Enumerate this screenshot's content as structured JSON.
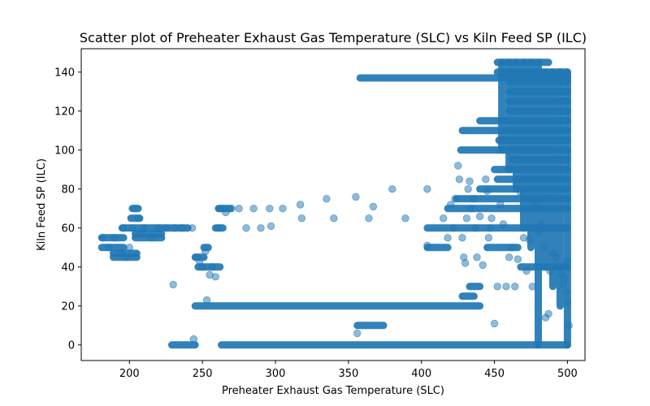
{
  "chart_data": {
    "type": "scatter",
    "title": "Scatter plot of Preheater Exhaust Gas Temperature (SLC) vs Kiln Feed  SP  (ILC)",
    "xlabel": "Preheater Exhaust Gas Temperature (SLC)",
    "ylabel": "Kiln Feed  SP  (ILC)",
    "xlim": [
      167,
      512
    ],
    "ylim": [
      -8,
      152
    ],
    "xticks": [
      200,
      250,
      300,
      350,
      400,
      450,
      500
    ],
    "yticks": [
      0,
      20,
      40,
      60,
      80,
      100,
      120,
      140
    ],
    "grid": false,
    "marker_color": "#1f77b4",
    "marker_alpha": 0.5,
    "series": [
      {
        "points": [
          [
            182,
            55
          ],
          [
            186,
            50
          ],
          [
            190,
            55
          ],
          [
            194,
            47
          ],
          [
            196,
            60
          ],
          [
            198,
            45
          ],
          [
            200,
            50
          ],
          [
            202,
            60
          ],
          [
            204,
            70
          ],
          [
            206,
            65
          ],
          [
            208,
            57
          ],
          [
            210,
            60
          ],
          [
            215,
            55
          ],
          [
            220,
            60
          ],
          [
            225,
            60
          ],
          [
            230,
            31
          ],
          [
            231,
            60
          ],
          [
            236,
            60
          ],
          [
            243,
            60
          ],
          [
            244,
            3
          ],
          [
            246,
            45
          ],
          [
            248,
            43
          ],
          [
            250,
            40
          ],
          [
            252,
            48
          ],
          [
            253,
            23
          ],
          [
            255,
            36
          ],
          [
            257,
            40
          ],
          [
            259,
            35
          ],
          [
            261,
            60
          ],
          [
            262,
            70
          ],
          [
            264,
            70
          ],
          [
            266,
            68
          ],
          [
            270,
            70
          ],
          [
            275,
            70
          ],
          [
            280,
            60
          ],
          [
            285,
            70
          ],
          [
            290,
            60
          ],
          [
            296,
            70
          ],
          [
            297,
            61
          ],
          [
            305,
            70
          ],
          [
            317,
            72
          ],
          [
            318,
            65
          ],
          [
            335,
            75
          ],
          [
            340,
            65
          ],
          [
            355,
            76
          ],
          [
            356,
            6
          ],
          [
            364,
            65
          ],
          [
            367,
            71
          ],
          [
            380,
            80
          ],
          [
            389,
            65
          ],
          [
            404,
            80
          ],
          [
            404,
            51
          ],
          [
            415,
            65
          ],
          [
            418,
            55
          ],
          [
            420,
            72
          ],
          [
            422,
            60
          ],
          [
            423,
            75
          ],
          [
            425,
            92
          ],
          [
            426,
            85
          ],
          [
            428,
            55
          ],
          [
            429,
            45
          ],
          [
            430,
            42
          ],
          [
            431,
            65
          ],
          [
            432,
            80
          ],
          [
            433,
            84
          ],
          [
            434,
            70
          ],
          [
            436,
            75
          ],
          [
            437,
            60
          ],
          [
            438,
            45
          ],
          [
            440,
            66
          ],
          [
            442,
            41
          ],
          [
            444,
            85
          ],
          [
            445,
            79
          ],
          [
            446,
            55
          ],
          [
            447,
            60
          ],
          [
            448,
            65
          ],
          [
            450,
            11
          ],
          [
            452,
            30
          ],
          [
            454,
            72
          ],
          [
            456,
            62
          ],
          [
            458,
            30
          ],
          [
            460,
            45
          ],
          [
            462,
            50
          ],
          [
            464,
            30
          ],
          [
            466,
            44
          ],
          [
            468,
            78
          ],
          [
            470,
            55
          ],
          [
            472,
            38
          ],
          [
            474,
            54
          ],
          [
            476,
            30
          ],
          [
            478,
            73
          ],
          [
            480,
            58
          ],
          [
            482,
            62
          ],
          [
            484,
            50
          ],
          [
            485,
            14
          ],
          [
            487,
            16
          ],
          [
            488,
            38
          ],
          [
            490,
            47
          ],
          [
            492,
            45
          ],
          [
            494,
            40
          ],
          [
            496,
            36
          ],
          [
            497,
            31
          ],
          [
            498,
            34
          ],
          [
            499,
            27
          ],
          [
            500,
            22
          ],
          [
            501,
            10
          ],
          [
            500,
            43
          ]
        ],
        "segments": [
          {
            "y": 55,
            "x": [
              181,
              196
            ]
          },
          {
            "y": 50,
            "x": [
              181,
              196
            ]
          },
          {
            "y": 45,
            "x": [
              189,
              205
            ]
          },
          {
            "y": 47,
            "x": [
              189,
              205
            ]
          },
          {
            "y": 60,
            "x": [
              195,
              240
            ]
          },
          {
            "y": 55,
            "x": [
              204,
              222
            ]
          },
          {
            "y": 57,
            "x": [
              204,
              222
            ]
          },
          {
            "y": 65,
            "x": [
              201,
              207
            ]
          },
          {
            "y": 70,
            "x": [
              202,
              206
            ]
          },
          {
            "y": 0,
            "x": [
              229,
              245
            ]
          },
          {
            "y": 45,
            "x": [
              245,
              251
            ]
          },
          {
            "y": 40,
            "x": [
              247,
              262
            ]
          },
          {
            "y": 50,
            "x": [
              251,
              254
            ]
          },
          {
            "y": 60,
            "x": [
              259,
              264
            ]
          },
          {
            "y": 70,
            "x": [
              261,
              269
            ]
          },
          {
            "y": 20,
            "x": [
              245,
              440
            ]
          },
          {
            "y": 0,
            "x": [
              263,
              500
            ]
          },
          {
            "y": 10,
            "x": [
              356,
              374
            ]
          },
          {
            "y": 137,
            "x": [
              358,
              500
            ]
          },
          {
            "y": 110,
            "x": [
              428,
              500
            ]
          },
          {
            "y": 100,
            "x": [
              427,
              500
            ]
          },
          {
            "y": 115,
            "x": [
              440,
              500
            ]
          },
          {
            "y": 75,
            "x": [
              424,
              500
            ]
          },
          {
            "y": 70,
            "x": [
              418,
              500
            ]
          },
          {
            "y": 80,
            "x": [
              440,
              500
            ]
          },
          {
            "y": 85,
            "x": [
              452,
              500
            ]
          },
          {
            "y": 90,
            "x": [
              450,
              500
            ]
          },
          {
            "y": 95,
            "x": [
              462,
              500
            ]
          },
          {
            "y": 105,
            "x": [
              453,
              500
            ]
          },
          {
            "y": 120,
            "x": [
              460,
              500
            ]
          },
          {
            "y": 125,
            "x": [
              460,
              500
            ]
          },
          {
            "y": 130,
            "x": [
              460,
              500
            ]
          },
          {
            "y": 135,
            "x": [
              460,
              500
            ]
          },
          {
            "y": 140,
            "x": [
              452,
              500
            ]
          },
          {
            "y": 145,
            "x": [
              452,
              487
            ]
          },
          {
            "y": 60,
            "x": [
              404,
              500
            ]
          },
          {
            "y": 50,
            "x": [
              404,
              418
            ]
          },
          {
            "y": 50,
            "x": [
              445,
              466
            ]
          },
          {
            "y": 40,
            "x": [
              468,
              500
            ]
          },
          {
            "y": 30,
            "x": [
              433,
              440
            ]
          },
          {
            "y": 25,
            "x": [
              428,
              436
            ]
          }
        ],
        "columns": [
          {
            "x": 480,
            "y": [
              0,
              145
            ]
          },
          {
            "x": 485,
            "y": [
              40,
              140
            ]
          },
          {
            "x": 490,
            "y": [
              30,
              140
            ]
          },
          {
            "x": 495,
            "y": [
              20,
              140
            ]
          },
          {
            "x": 500,
            "y": [
              0,
              140
            ]
          },
          {
            "x": 470,
            "y": [
              60,
              145
            ]
          },
          {
            "x": 465,
            "y": [
              80,
              145
            ]
          },
          {
            "x": 460,
            "y": [
              90,
              145
            ]
          },
          {
            "x": 455,
            "y": [
              100,
              145
            ]
          },
          {
            "x": 475,
            "y": [
              50,
              145
            ]
          }
        ]
      }
    ]
  }
}
